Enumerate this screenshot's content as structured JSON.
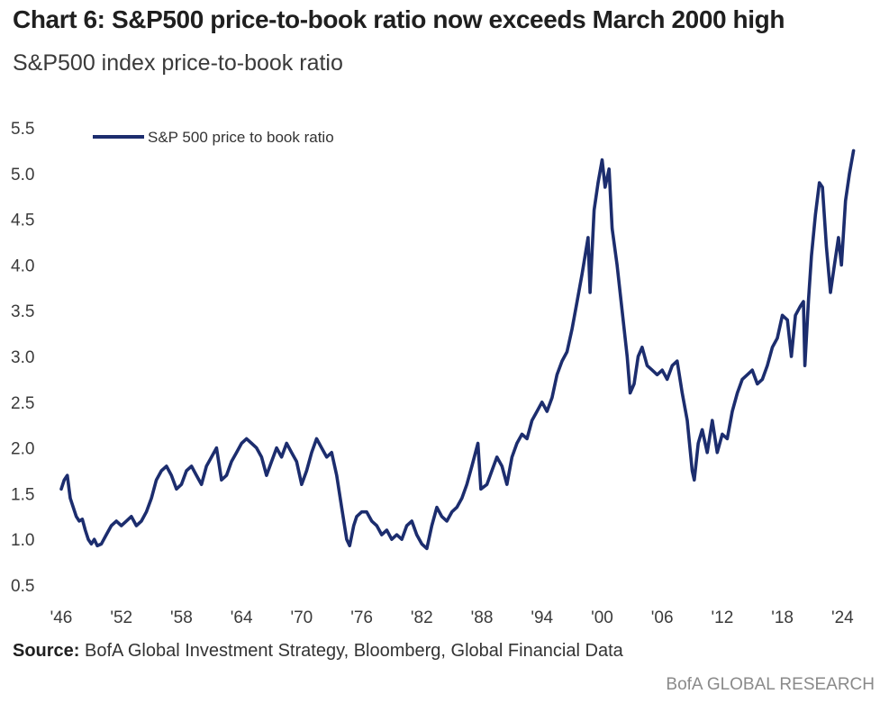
{
  "title": "Chart 6: S&P500 price-to-book ratio now exceeds March 2000 high",
  "subtitle": "S&P500 index price-to-book ratio",
  "source_label": "Source:",
  "source_text": "BofA Global Investment Strategy, Bloomberg, Global Financial Data",
  "brand": "BofA GLOBAL RESEARCH",
  "colors": {
    "series": "#1c2d6e",
    "axis_text": "#3a3a3a"
  },
  "chart_data": {
    "type": "line",
    "ylim": [
      0.5,
      5.5
    ],
    "yticks": [
      0.5,
      1.0,
      1.5,
      2.0,
      2.5,
      3.0,
      3.5,
      4.0,
      4.5,
      5.0,
      5.5
    ],
    "ytick_labels": [
      "0.5",
      "1.0",
      "1.5",
      "2.0",
      "2.5",
      "3.0",
      "3.5",
      "4.0",
      "4.5",
      "5.0",
      "5.5"
    ],
    "xlim": [
      1946,
      2025.5
    ],
    "xticks": [
      1946,
      1952,
      1958,
      1964,
      1970,
      1976,
      1982,
      1988,
      1994,
      2000,
      2006,
      2012,
      2018,
      2024
    ],
    "xtick_labels": [
      "'46",
      "'52",
      "'58",
      "'64",
      "'70",
      "'76",
      "'82",
      "'88",
      "'94",
      "'00",
      "'06",
      "'12",
      "'18",
      "'24"
    ],
    "grid": false,
    "legend_position": "top-left",
    "series": [
      {
        "name": "S&P 500 price to book ratio",
        "points": [
          [
            1946.0,
            1.55
          ],
          [
            1946.3,
            1.65
          ],
          [
            1946.6,
            1.7
          ],
          [
            1946.9,
            1.45
          ],
          [
            1947.2,
            1.35
          ],
          [
            1947.5,
            1.25
          ],
          [
            1947.8,
            1.2
          ],
          [
            1948.1,
            1.22
          ],
          [
            1948.4,
            1.1
          ],
          [
            1948.7,
            1.0
          ],
          [
            1949.0,
            0.95
          ],
          [
            1949.3,
            1.0
          ],
          [
            1949.6,
            0.93
          ],
          [
            1950.0,
            0.95
          ],
          [
            1950.5,
            1.05
          ],
          [
            1951.0,
            1.15
          ],
          [
            1951.5,
            1.2
          ],
          [
            1952.0,
            1.15
          ],
          [
            1952.5,
            1.2
          ],
          [
            1953.0,
            1.25
          ],
          [
            1953.5,
            1.15
          ],
          [
            1954.0,
            1.2
          ],
          [
            1954.5,
            1.3
          ],
          [
            1955.0,
            1.45
          ],
          [
            1955.5,
            1.65
          ],
          [
            1956.0,
            1.75
          ],
          [
            1956.5,
            1.8
          ],
          [
            1957.0,
            1.7
          ],
          [
            1957.5,
            1.55
          ],
          [
            1958.0,
            1.6
          ],
          [
            1958.5,
            1.75
          ],
          [
            1959.0,
            1.8
          ],
          [
            1959.5,
            1.7
          ],
          [
            1960.0,
            1.6
          ],
          [
            1960.5,
            1.8
          ],
          [
            1961.0,
            1.9
          ],
          [
            1961.5,
            2.0
          ],
          [
            1962.0,
            1.65
          ],
          [
            1962.5,
            1.7
          ],
          [
            1963.0,
            1.85
          ],
          [
            1963.5,
            1.95
          ],
          [
            1964.0,
            2.05
          ],
          [
            1964.5,
            2.1
          ],
          [
            1965.0,
            2.05
          ],
          [
            1965.5,
            2.0
          ],
          [
            1966.0,
            1.9
          ],
          [
            1966.5,
            1.7
          ],
          [
            1967.0,
            1.85
          ],
          [
            1967.5,
            2.0
          ],
          [
            1968.0,
            1.9
          ],
          [
            1968.5,
            2.05
          ],
          [
            1969.0,
            1.95
          ],
          [
            1969.5,
            1.85
          ],
          [
            1970.0,
            1.6
          ],
          [
            1970.5,
            1.75
          ],
          [
            1971.0,
            1.95
          ],
          [
            1971.5,
            2.1
          ],
          [
            1972.0,
            2.0
          ],
          [
            1972.5,
            1.9
          ],
          [
            1973.0,
            1.95
          ],
          [
            1973.5,
            1.7
          ],
          [
            1974.0,
            1.35
          ],
          [
            1974.5,
            1.0
          ],
          [
            1974.8,
            0.93
          ],
          [
            1975.2,
            1.15
          ],
          [
            1975.5,
            1.25
          ],
          [
            1976.0,
            1.3
          ],
          [
            1976.5,
            1.3
          ],
          [
            1977.0,
            1.2
          ],
          [
            1977.5,
            1.15
          ],
          [
            1978.0,
            1.05
          ],
          [
            1978.5,
            1.1
          ],
          [
            1979.0,
            1.0
          ],
          [
            1979.5,
            1.05
          ],
          [
            1980.0,
            1.0
          ],
          [
            1980.5,
            1.15
          ],
          [
            1981.0,
            1.2
          ],
          [
            1981.5,
            1.05
          ],
          [
            1982.0,
            0.95
          ],
          [
            1982.5,
            0.9
          ],
          [
            1983.0,
            1.15
          ],
          [
            1983.5,
            1.35
          ],
          [
            1984.0,
            1.25
          ],
          [
            1984.5,
            1.2
          ],
          [
            1985.0,
            1.3
          ],
          [
            1985.5,
            1.35
          ],
          [
            1986.0,
            1.45
          ],
          [
            1986.5,
            1.6
          ],
          [
            1987.0,
            1.8
          ],
          [
            1987.6,
            2.05
          ],
          [
            1987.9,
            1.55
          ],
          [
            1988.5,
            1.6
          ],
          [
            1989.0,
            1.75
          ],
          [
            1989.5,
            1.9
          ],
          [
            1990.0,
            1.8
          ],
          [
            1990.5,
            1.6
          ],
          [
            1991.0,
            1.9
          ],
          [
            1991.5,
            2.05
          ],
          [
            1992.0,
            2.15
          ],
          [
            1992.5,
            2.1
          ],
          [
            1993.0,
            2.3
          ],
          [
            1993.5,
            2.4
          ],
          [
            1994.0,
            2.5
          ],
          [
            1994.5,
            2.4
          ],
          [
            1995.0,
            2.55
          ],
          [
            1995.5,
            2.8
          ],
          [
            1996.0,
            2.95
          ],
          [
            1996.5,
            3.05
          ],
          [
            1997.0,
            3.3
          ],
          [
            1997.5,
            3.6
          ],
          [
            1998.0,
            3.9
          ],
          [
            1998.6,
            4.3
          ],
          [
            1998.8,
            3.7
          ],
          [
            1999.2,
            4.6
          ],
          [
            1999.6,
            4.9
          ],
          [
            2000.0,
            5.15
          ],
          [
            2000.3,
            4.85
          ],
          [
            2000.7,
            5.05
          ],
          [
            2001.0,
            4.4
          ],
          [
            2001.5,
            4.0
          ],
          [
            2002.0,
            3.5
          ],
          [
            2002.5,
            3.0
          ],
          [
            2002.8,
            2.6
          ],
          [
            2003.2,
            2.7
          ],
          [
            2003.6,
            3.0
          ],
          [
            2004.0,
            3.1
          ],
          [
            2004.5,
            2.9
          ],
          [
            2005.0,
            2.85
          ],
          [
            2005.5,
            2.8
          ],
          [
            2006.0,
            2.85
          ],
          [
            2006.5,
            2.75
          ],
          [
            2007.0,
            2.9
          ],
          [
            2007.5,
            2.95
          ],
          [
            2008.0,
            2.6
          ],
          [
            2008.5,
            2.3
          ],
          [
            2009.0,
            1.75
          ],
          [
            2009.2,
            1.65
          ],
          [
            2009.6,
            2.05
          ],
          [
            2010.0,
            2.2
          ],
          [
            2010.5,
            1.95
          ],
          [
            2011.0,
            2.3
          ],
          [
            2011.5,
            1.95
          ],
          [
            2012.0,
            2.15
          ],
          [
            2012.5,
            2.1
          ],
          [
            2013.0,
            2.4
          ],
          [
            2013.5,
            2.6
          ],
          [
            2014.0,
            2.75
          ],
          [
            2014.5,
            2.8
          ],
          [
            2015.0,
            2.85
          ],
          [
            2015.5,
            2.7
          ],
          [
            2016.0,
            2.75
          ],
          [
            2016.5,
            2.9
          ],
          [
            2017.0,
            3.1
          ],
          [
            2017.5,
            3.2
          ],
          [
            2018.0,
            3.45
          ],
          [
            2018.5,
            3.4
          ],
          [
            2018.9,
            3.0
          ],
          [
            2019.3,
            3.45
          ],
          [
            2019.8,
            3.55
          ],
          [
            2020.1,
            3.6
          ],
          [
            2020.25,
            2.9
          ],
          [
            2020.6,
            3.6
          ],
          [
            2020.9,
            4.1
          ],
          [
            2021.3,
            4.55
          ],
          [
            2021.7,
            4.9
          ],
          [
            2022.0,
            4.85
          ],
          [
            2022.4,
            4.2
          ],
          [
            2022.8,
            3.7
          ],
          [
            2023.2,
            4.0
          ],
          [
            2023.6,
            4.3
          ],
          [
            2023.9,
            4.0
          ],
          [
            2024.3,
            4.7
          ],
          [
            2024.7,
            5.0
          ],
          [
            2025.1,
            5.25
          ]
        ]
      }
    ]
  }
}
